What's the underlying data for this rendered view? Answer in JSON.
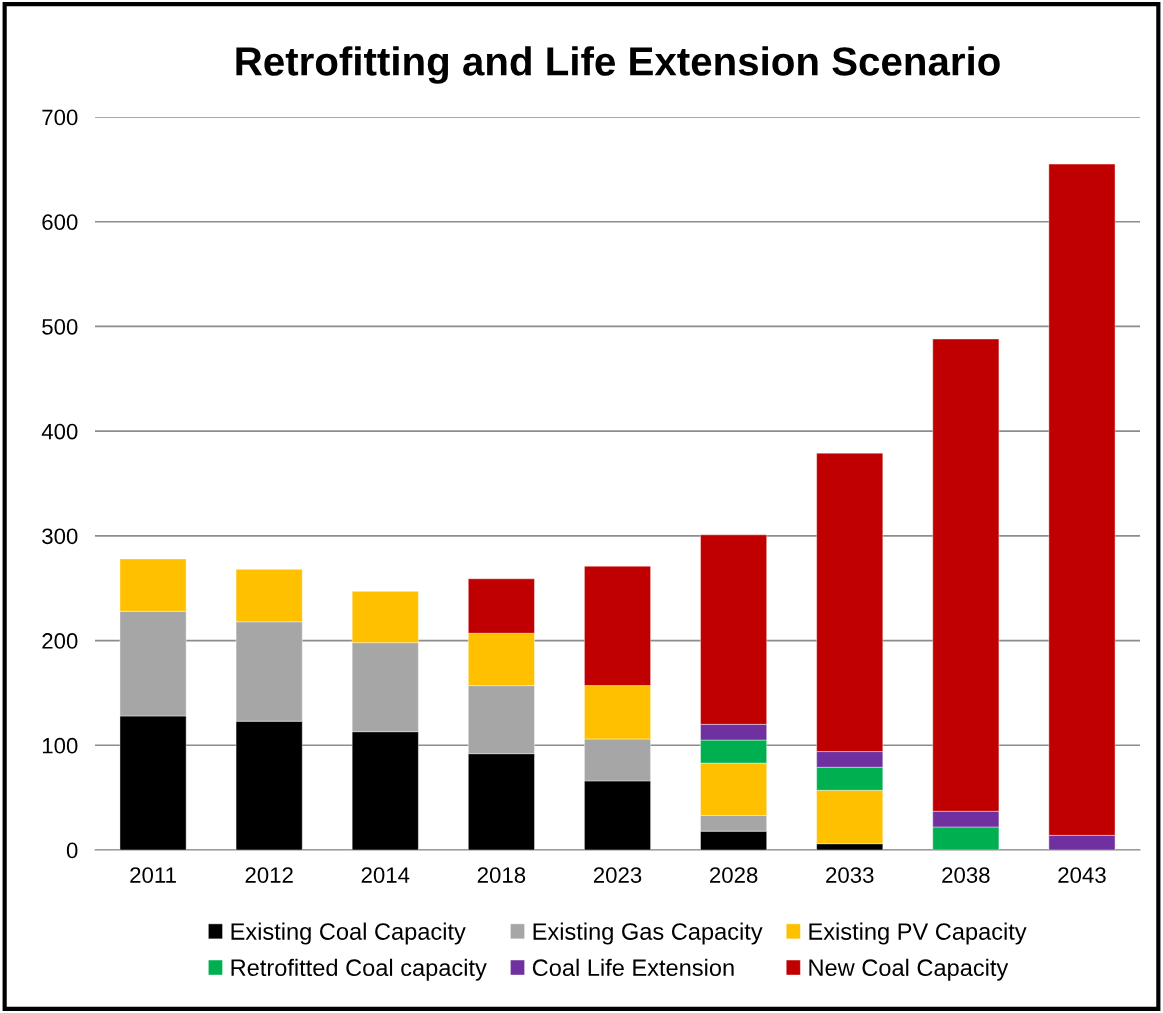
{
  "chart_data": {
    "type": "bar",
    "title": "Retrofitting and Life Extension Scenario",
    "stacked": true,
    "categories": [
      "2011",
      "2012",
      "2014",
      "2018",
      "2023",
      "2028",
      "2033",
      "2038",
      "2043"
    ],
    "series": [
      {
        "name": "Existing Coal Capacity",
        "color": "#000000",
        "values": [
          128,
          123,
          113,
          92,
          66,
          18,
          6,
          null,
          null
        ]
      },
      {
        "name": "Existing Gas Capacity",
        "color": "#a6a6a6",
        "values": [
          100,
          95,
          85,
          65,
          40,
          15,
          null,
          null,
          null
        ]
      },
      {
        "name": "Existing PV Capacity",
        "color": "#ffc000",
        "values": [
          50,
          50,
          49,
          50,
          51,
          50,
          51,
          null,
          null
        ]
      },
      {
        "name": "Retrofitted Coal capacity",
        "color": "#00b050",
        "values": [
          null,
          null,
          null,
          null,
          null,
          22,
          22,
          22,
          null
        ]
      },
      {
        "name": "Coal Life Extension",
        "color": "#7030a0",
        "values": [
          null,
          null,
          null,
          null,
          null,
          15,
          15,
          15,
          14
        ]
      },
      {
        "name": "New Coal Capacity",
        "color": "#c00000",
        "values": [
          null,
          null,
          null,
          52,
          114,
          181,
          285,
          451,
          641
        ]
      }
    ],
    "ylim": [
      0,
      700
    ],
    "yticks": [
      0,
      100,
      200,
      300,
      400,
      500,
      600,
      700
    ],
    "grid": "y",
    "legend": "bottom"
  }
}
